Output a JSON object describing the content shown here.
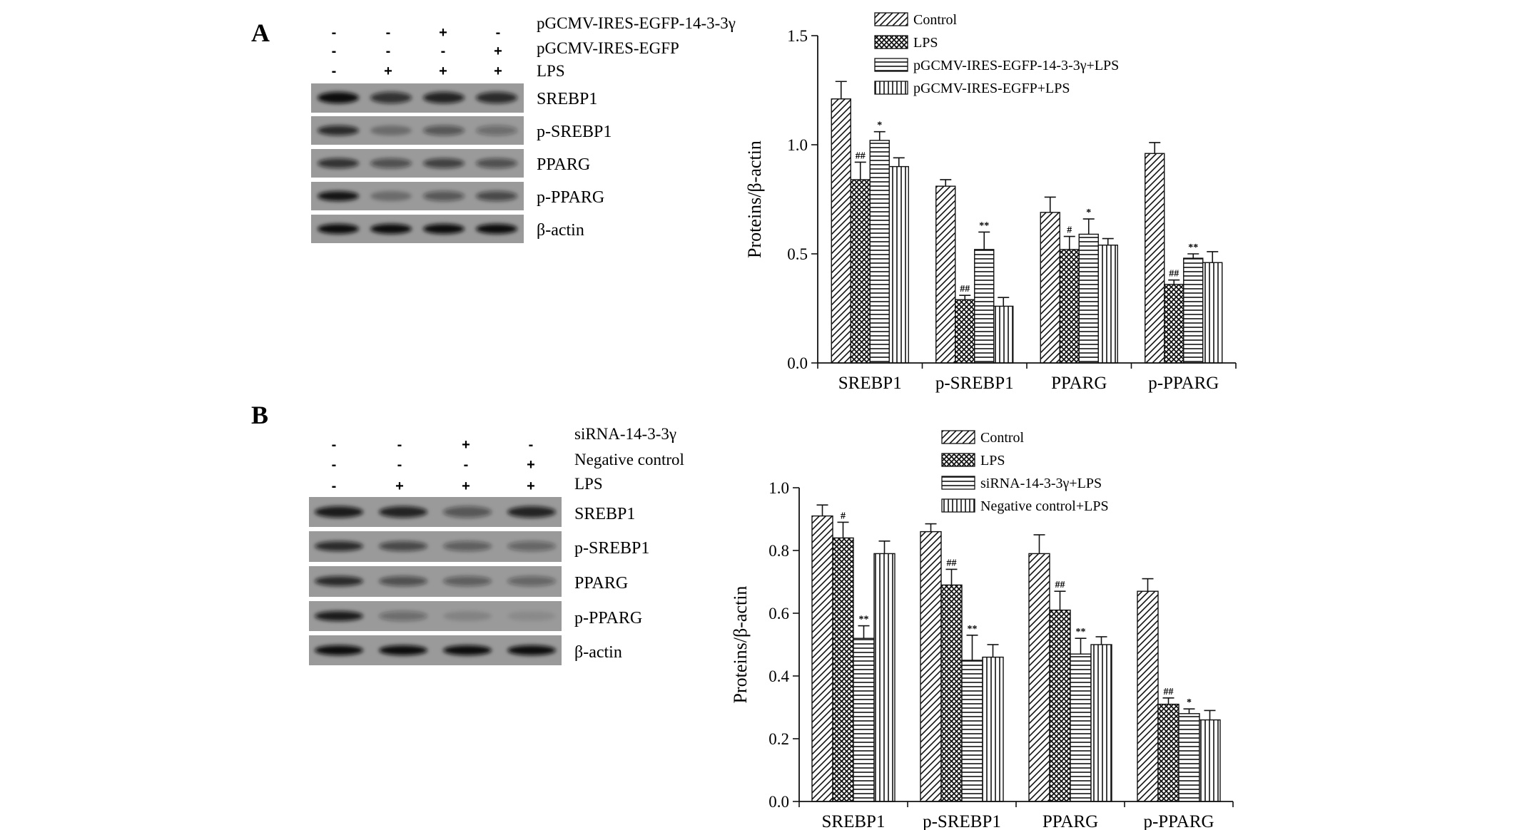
{
  "panels": [
    {
      "letter": "A",
      "conditions": [
        {
          "label": "pGCMV-IRES-EGFP-14-3-3γ",
          "signs": [
            "-",
            "-",
            "+",
            "-"
          ]
        },
        {
          "label": "pGCMV-IRES-EGFP",
          "signs": [
            "-",
            "-",
            "-",
            "+"
          ]
        },
        {
          "label": "LPS",
          "signs": [
            "-",
            "+",
            "+",
            "+"
          ]
        }
      ],
      "blots": [
        {
          "label": "SREBP1",
          "bands": [
            1.0,
            0.75,
            0.85,
            0.8
          ]
        },
        {
          "label": "p-SREBP1",
          "bands": [
            0.8,
            0.3,
            0.5,
            0.35
          ]
        },
        {
          "label": "PPARG",
          "bands": [
            0.75,
            0.55,
            0.65,
            0.55
          ]
        },
        {
          "label": "p-PPARG",
          "bands": [
            0.95,
            0.3,
            0.5,
            0.6
          ]
        },
        {
          "label": "β-actin",
          "bands": [
            1.0,
            1.0,
            1.0,
            1.0
          ]
        }
      ]
    },
    {
      "letter": "B",
      "conditions": [
        {
          "label": "siRNA-14-3-3γ",
          "signs": [
            "-",
            "-",
            "+",
            "-"
          ]
        },
        {
          "label": "Negative control",
          "signs": [
            "-",
            "-",
            "-",
            "+"
          ]
        },
        {
          "label": "LPS",
          "signs": [
            "-",
            "+",
            "+",
            "+"
          ]
        }
      ],
      "blots": [
        {
          "label": "SREBP1",
          "bands": [
            0.9,
            0.85,
            0.5,
            0.85
          ]
        },
        {
          "label": "p-SREBP1",
          "bands": [
            0.8,
            0.6,
            0.45,
            0.4
          ]
        },
        {
          "label": "PPARG",
          "bands": [
            0.8,
            0.55,
            0.45,
            0.4
          ]
        },
        {
          "label": "p-PPARG",
          "bands": [
            0.9,
            0.35,
            0.15,
            0.1
          ]
        },
        {
          "label": "β-actin",
          "bands": [
            1.0,
            1.0,
            1.0,
            1.0
          ]
        }
      ]
    }
  ],
  "chart_data": [
    {
      "type": "bar",
      "ylabel": "Proteins/β-actin",
      "xlabel": "",
      "ylim": [
        0,
        1.5
      ],
      "yticks": [
        "0.0",
        "0.5",
        "1.0",
        "1.5"
      ],
      "categories": [
        "SREBP1",
        "p-SREBP1",
        "PPARG",
        "p-PPARG"
      ],
      "legend_position": "top-right",
      "series": [
        {
          "name": "Control",
          "pattern": "diag",
          "values": [
            1.21,
            0.81,
            0.69,
            0.96
          ],
          "errors": [
            0.08,
            0.03,
            0.07,
            0.05
          ],
          "sig": [
            "",
            "",
            "",
            ""
          ]
        },
        {
          "name": "LPS",
          "pattern": "cross",
          "values": [
            0.84,
            0.29,
            0.52,
            0.36
          ],
          "errors": [
            0.08,
            0.02,
            0.06,
            0.02
          ],
          "sig": [
            "##",
            "##",
            "#",
            "##"
          ]
        },
        {
          "name": "pGCMV-IRES-EGFP-14-3-3γ+LPS",
          "pattern": "hlines",
          "values": [
            1.02,
            0.52,
            0.59,
            0.48
          ],
          "errors": [
            0.04,
            0.08,
            0.07,
            0.02
          ],
          "sig": [
            "*",
            "**",
            "*",
            "**"
          ]
        },
        {
          "name": "pGCMV-IRES-EGFP+LPS",
          "pattern": "vlines",
          "values": [
            0.9,
            0.26,
            0.54,
            0.46
          ],
          "errors": [
            0.04,
            0.04,
            0.03,
            0.05
          ],
          "sig": [
            "",
            "",
            "",
            ""
          ]
        }
      ]
    },
    {
      "type": "bar",
      "ylabel": "Proteins/β-actin",
      "xlabel": "",
      "ylim": [
        0,
        1.0
      ],
      "yticks": [
        "0.0",
        "0.2",
        "0.4",
        "0.6",
        "0.8",
        "1.0"
      ],
      "categories": [
        "SREBP1",
        "p-SREBP1",
        "PPARG",
        "p-PPARG"
      ],
      "legend_position": "top-right",
      "series": [
        {
          "name": "Control",
          "pattern": "diag",
          "values": [
            0.91,
            0.86,
            0.79,
            0.67
          ],
          "errors": [
            0.035,
            0.025,
            0.06,
            0.04
          ],
          "sig": [
            "",
            "",
            "",
            ""
          ]
        },
        {
          "name": "LPS",
          "pattern": "cross",
          "values": [
            0.84,
            0.69,
            0.61,
            0.31
          ],
          "errors": [
            0.05,
            0.05,
            0.06,
            0.02
          ],
          "sig": [
            "#",
            "##",
            "##",
            "##"
          ]
        },
        {
          "name": "siRNA-14-3-3γ+LPS",
          "pattern": "hlines",
          "values": [
            0.52,
            0.45,
            0.47,
            0.28
          ],
          "errors": [
            0.04,
            0.08,
            0.05,
            0.015
          ],
          "sig": [
            "**",
            "**",
            "**",
            "*"
          ]
        },
        {
          "name": "Negative control+LPS",
          "pattern": "vlines",
          "values": [
            0.79,
            0.46,
            0.5,
            0.26
          ],
          "errors": [
            0.04,
            0.04,
            0.025,
            0.03
          ],
          "sig": [
            "",
            "",
            "",
            ""
          ]
        }
      ]
    }
  ]
}
